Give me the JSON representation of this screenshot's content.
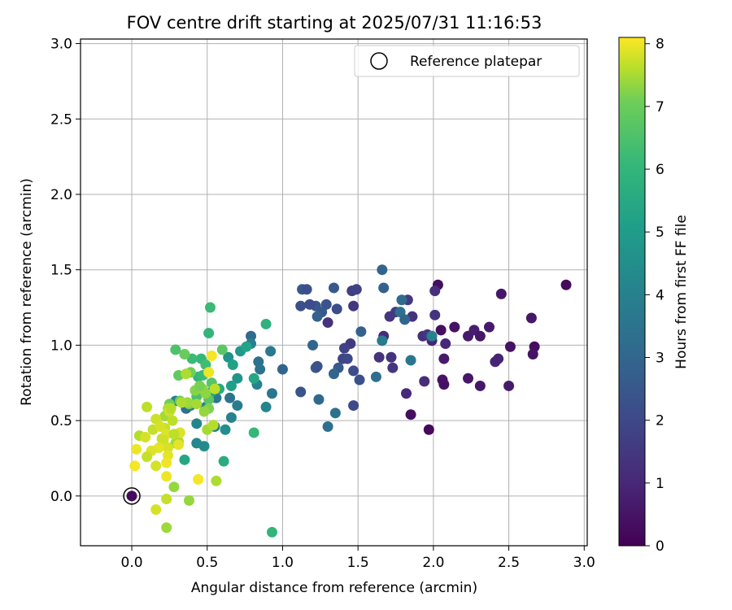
{
  "chart_data": {
    "type": "scatter",
    "title": "FOV centre drift starting at 2025/07/31 11:16:53",
    "xlabel": "Angular distance from reference (arcmin)",
    "ylabel": "Rotation from reference (arcmin)",
    "xlim": [
      -0.34,
      3.02
    ],
    "ylim": [
      -0.33,
      3.03
    ],
    "xticks": [
      0.0,
      0.5,
      1.0,
      1.5,
      2.0,
      2.5,
      3.0
    ],
    "xtick_labels": [
      "0.0",
      "0.5",
      "1.0",
      "1.5",
      "2.0",
      "2.5",
      "3.0"
    ],
    "yticks": [
      0.0,
      0.5,
      1.0,
      1.5,
      2.0,
      2.5,
      3.0
    ],
    "ytick_labels": [
      "0.0",
      "0.5",
      "1.0",
      "1.5",
      "2.0",
      "2.5",
      "3.0"
    ],
    "grid": true,
    "legend": {
      "placement": "top-right",
      "entries": [
        {
          "label": "Reference platepar",
          "marker": "open-circle",
          "color": "#000000"
        }
      ]
    },
    "reference_point": {
      "x": 0.0,
      "y": 0.0
    },
    "colorbar": {
      "label": "Hours from first FF file",
      "range": [
        0,
        8.1
      ],
      "ticks": [
        0,
        1,
        2,
        3,
        4,
        5,
        6,
        7,
        8
      ],
      "tick_labels": [
        "0",
        "1",
        "2",
        "3",
        "4",
        "5",
        "6",
        "7",
        "8"
      ],
      "colormap": "viridis"
    },
    "points": [
      {
        "x": 0.0,
        "y": 0.0,
        "t": 0.2
      },
      {
        "x": 2.88,
        "y": 1.4,
        "t": 0.2
      },
      {
        "x": 2.03,
        "y": 1.4,
        "t": 0.3
      },
      {
        "x": 2.45,
        "y": 1.34,
        "t": 0.5
      },
      {
        "x": 2.65,
        "y": 1.18,
        "t": 0.5
      },
      {
        "x": 2.37,
        "y": 1.12,
        "t": 0.6
      },
      {
        "x": 2.27,
        "y": 1.1,
        "t": 0.7
      },
      {
        "x": 2.14,
        "y": 1.12,
        "t": 0.4
      },
      {
        "x": 2.05,
        "y": 1.1,
        "t": 0.3
      },
      {
        "x": 2.23,
        "y": 1.06,
        "t": 0.6
      },
      {
        "x": 2.31,
        "y": 1.06,
        "t": 0.5
      },
      {
        "x": 2.51,
        "y": 0.99,
        "t": 0.4
      },
      {
        "x": 2.67,
        "y": 0.99,
        "t": 0.3
      },
      {
        "x": 2.66,
        "y": 0.94,
        "t": 0.4
      },
      {
        "x": 2.43,
        "y": 0.91,
        "t": 0.8
      },
      {
        "x": 2.41,
        "y": 0.89,
        "t": 0.8
      },
      {
        "x": 2.08,
        "y": 1.01,
        "t": 0.9
      },
      {
        "x": 1.99,
        "y": 1.03,
        "t": 0.8
      },
      {
        "x": 2.07,
        "y": 0.91,
        "t": 0.6
      },
      {
        "x": 2.23,
        "y": 0.78,
        "t": 0.5
      },
      {
        "x": 2.06,
        "y": 0.77,
        "t": 0.4
      },
      {
        "x": 2.07,
        "y": 0.74,
        "t": 0.4
      },
      {
        "x": 2.31,
        "y": 0.73,
        "t": 0.5
      },
      {
        "x": 2.5,
        "y": 0.73,
        "t": 0.6
      },
      {
        "x": 1.85,
        "y": 0.54,
        "t": 0.3
      },
      {
        "x": 1.97,
        "y": 0.44,
        "t": 0.2
      },
      {
        "x": 1.82,
        "y": 0.68,
        "t": 0.9
      },
      {
        "x": 1.94,
        "y": 0.76,
        "t": 1.0
      },
      {
        "x": 2.01,
        "y": 1.2,
        "t": 1.2
      },
      {
        "x": 2.01,
        "y": 1.36,
        "t": 1.1
      },
      {
        "x": 1.93,
        "y": 1.06,
        "t": 1.1
      },
      {
        "x": 1.96,
        "y": 1.07,
        "t": 1.3
      },
      {
        "x": 1.83,
        "y": 1.3,
        "t": 1.4
      },
      {
        "x": 1.71,
        "y": 1.19,
        "t": 1.3
      },
      {
        "x": 1.75,
        "y": 1.22,
        "t": 1.4
      },
      {
        "x": 1.86,
        "y": 1.19,
        "t": 1.2
      },
      {
        "x": 1.72,
        "y": 0.92,
        "t": 1.2
      },
      {
        "x": 1.64,
        "y": 0.92,
        "t": 1.2
      },
      {
        "x": 1.73,
        "y": 0.85,
        "t": 1.3
      },
      {
        "x": 1.67,
        "y": 1.06,
        "t": 1.0
      },
      {
        "x": 1.46,
        "y": 1.36,
        "t": 1.5
      },
      {
        "x": 1.49,
        "y": 1.37,
        "t": 1.6
      },
      {
        "x": 1.47,
        "y": 1.26,
        "t": 1.3
      },
      {
        "x": 1.45,
        "y": 1.01,
        "t": 1.4
      },
      {
        "x": 1.41,
        "y": 0.98,
        "t": 1.6
      },
      {
        "x": 1.4,
        "y": 0.91,
        "t": 1.7
      },
      {
        "x": 1.43,
        "y": 0.91,
        "t": 1.8
      },
      {
        "x": 1.47,
        "y": 0.83,
        "t": 1.9
      },
      {
        "x": 1.51,
        "y": 0.77,
        "t": 2.0
      },
      {
        "x": 1.47,
        "y": 0.6,
        "t": 1.8
      },
      {
        "x": 1.3,
        "y": 1.15,
        "t": 1.2
      },
      {
        "x": 1.36,
        "y": 1.24,
        "t": 1.9
      },
      {
        "x": 1.29,
        "y": 1.27,
        "t": 2.1
      },
      {
        "x": 1.26,
        "y": 1.22,
        "t": 2.3
      },
      {
        "x": 1.22,
        "y": 1.26,
        "t": 2.2
      },
      {
        "x": 1.13,
        "y": 1.37,
        "t": 2.2
      },
      {
        "x": 1.16,
        "y": 1.37,
        "t": 2.0
      },
      {
        "x": 1.23,
        "y": 1.19,
        "t": 2.5
      },
      {
        "x": 1.18,
        "y": 1.27,
        "t": 1.9
      },
      {
        "x": 1.12,
        "y": 1.26,
        "t": 2.0
      },
      {
        "x": 1.34,
        "y": 1.38,
        "t": 2.3
      },
      {
        "x": 1.66,
        "y": 1.5,
        "t": 2.6
      },
      {
        "x": 1.67,
        "y": 1.38,
        "t": 2.5
      },
      {
        "x": 1.79,
        "y": 1.3,
        "t": 2.8
      },
      {
        "x": 1.78,
        "y": 1.22,
        "t": 2.9
      },
      {
        "x": 1.81,
        "y": 1.17,
        "t": 2.6
      },
      {
        "x": 1.52,
        "y": 1.09,
        "t": 2.5
      },
      {
        "x": 1.37,
        "y": 0.85,
        "t": 2.3
      },
      {
        "x": 1.34,
        "y": 0.81,
        "t": 2.6
      },
      {
        "x": 1.22,
        "y": 0.85,
        "t": 2.4
      },
      {
        "x": 1.23,
        "y": 0.86,
        "t": 2.1
      },
      {
        "x": 1.2,
        "y": 1.0,
        "t": 2.6
      },
      {
        "x": 1.12,
        "y": 0.69,
        "t": 2.1
      },
      {
        "x": 1.24,
        "y": 0.64,
        "t": 2.7
      },
      {
        "x": 1.3,
        "y": 0.46,
        "t": 2.9
      },
      {
        "x": 1.35,
        "y": 0.55,
        "t": 3.0
      },
      {
        "x": 1.62,
        "y": 0.79,
        "t": 2.9
      },
      {
        "x": 1.85,
        "y": 0.9,
        "t": 3.2
      },
      {
        "x": 1.66,
        "y": 1.03,
        "t": 3.4
      },
      {
        "x": 1.99,
        "y": 1.06,
        "t": 3.6
      },
      {
        "x": 1.0,
        "y": 0.84,
        "t": 2.6
      },
      {
        "x": 0.92,
        "y": 0.96,
        "t": 3.3
      },
      {
        "x": 0.93,
        "y": 0.68,
        "t": 3.2
      },
      {
        "x": 0.84,
        "y": 0.89,
        "t": 3.0
      },
      {
        "x": 0.85,
        "y": 0.84,
        "t": 3.1
      },
      {
        "x": 0.79,
        "y": 1.06,
        "t": 2.8
      },
      {
        "x": 0.79,
        "y": 1.01,
        "t": 3.5
      },
      {
        "x": 0.83,
        "y": 0.74,
        "t": 3.6
      },
      {
        "x": 0.89,
        "y": 0.59,
        "t": 3.7
      },
      {
        "x": 0.7,
        "y": 0.6,
        "t": 3.4
      },
      {
        "x": 0.65,
        "y": 0.65,
        "t": 3.1
      },
      {
        "x": 0.66,
        "y": 0.52,
        "t": 3.6
      },
      {
        "x": 0.56,
        "y": 0.65,
        "t": 3.3
      },
      {
        "x": 0.62,
        "y": 0.44,
        "t": 4.0
      },
      {
        "x": 0.55,
        "y": 0.46,
        "t": 3.5
      },
      {
        "x": 0.49,
        "y": 0.59,
        "t": 3.6
      },
      {
        "x": 0.43,
        "y": 0.48,
        "t": 3.7
      },
      {
        "x": 0.43,
        "y": 0.35,
        "t": 3.8
      },
      {
        "x": 0.48,
        "y": 0.33,
        "t": 3.9
      },
      {
        "x": 0.39,
        "y": 0.6,
        "t": 3.3
      },
      {
        "x": 0.36,
        "y": 0.58,
        "t": 3.0
      },
      {
        "x": 0.29,
        "y": 0.63,
        "t": 3.5
      },
      {
        "x": 0.7,
        "y": 0.78,
        "t": 4.2
      },
      {
        "x": 0.72,
        "y": 0.96,
        "t": 4.3
      },
      {
        "x": 0.64,
        "y": 0.92,
        "t": 4.1
      },
      {
        "x": 0.67,
        "y": 0.87,
        "t": 4.6
      },
      {
        "x": 0.66,
        "y": 0.73,
        "t": 4.5
      },
      {
        "x": 0.81,
        "y": 0.78,
        "t": 4.8
      },
      {
        "x": 0.76,
        "y": 0.99,
        "t": 4.7
      },
      {
        "x": 0.58,
        "y": 0.71,
        "t": 4.9
      },
      {
        "x": 0.53,
        "y": 0.69,
        "t": 4.6
      },
      {
        "x": 0.61,
        "y": 0.23,
        "t": 5.0
      },
      {
        "x": 0.35,
        "y": 0.24,
        "t": 4.8
      },
      {
        "x": 0.93,
        "y": -0.24,
        "t": 5.3
      },
      {
        "x": 0.81,
        "y": 0.42,
        "t": 5.4
      },
      {
        "x": 0.89,
        "y": 1.14,
        "t": 5.2
      },
      {
        "x": 0.52,
        "y": 1.25,
        "t": 5.5
      },
      {
        "x": 0.51,
        "y": 1.08,
        "t": 5.3
      },
      {
        "x": 0.46,
        "y": 0.91,
        "t": 5.4
      },
      {
        "x": 0.49,
        "y": 0.87,
        "t": 5.6
      },
      {
        "x": 0.4,
        "y": 0.91,
        "t": 5.5
      },
      {
        "x": 0.44,
        "y": 0.79,
        "t": 5.3
      },
      {
        "x": 0.47,
        "y": 0.8,
        "t": 5.5
      },
      {
        "x": 0.43,
        "y": 0.66,
        "t": 5.7
      },
      {
        "x": 0.53,
        "y": 0.75,
        "t": 5.9
      },
      {
        "x": 0.6,
        "y": 0.97,
        "t": 6.0
      },
      {
        "x": 0.35,
        "y": 0.94,
        "t": 6.2
      },
      {
        "x": 0.31,
        "y": 0.8,
        "t": 6.1
      },
      {
        "x": 0.29,
        "y": 0.97,
        "t": 5.8
      },
      {
        "x": 0.39,
        "y": 0.82,
        "t": 6.3
      },
      {
        "x": 0.38,
        "y": 0.61,
        "t": 6.4
      },
      {
        "x": 0.32,
        "y": 0.63,
        "t": 6.2
      },
      {
        "x": 0.25,
        "y": 0.61,
        "t": 6.3
      },
      {
        "x": 0.51,
        "y": 0.64,
        "t": 6.0
      },
      {
        "x": 0.51,
        "y": 0.58,
        "t": 6.5
      },
      {
        "x": 0.42,
        "y": 0.7,
        "t": 6.6
      },
      {
        "x": 0.47,
        "y": 0.71,
        "t": 6.8
      },
      {
        "x": 0.49,
        "y": 0.68,
        "t": 6.7
      },
      {
        "x": 0.45,
        "y": 0.73,
        "t": 6.4
      },
      {
        "x": 0.48,
        "y": 0.56,
        "t": 6.8
      },
      {
        "x": 0.37,
        "y": 0.62,
        "t": 6.9
      },
      {
        "x": 0.43,
        "y": 0.61,
        "t": 7.0
      },
      {
        "x": 0.33,
        "y": 0.62,
        "t": 7.1
      },
      {
        "x": 0.24,
        "y": 0.58,
        "t": 7.2
      },
      {
        "x": 0.22,
        "y": 0.53,
        "t": 7.0
      },
      {
        "x": 0.27,
        "y": 0.5,
        "t": 7.3
      },
      {
        "x": 0.22,
        "y": 0.45,
        "t": 7.4
      },
      {
        "x": 0.29,
        "y": 0.35,
        "t": 6.9
      },
      {
        "x": 0.31,
        "y": 0.36,
        "t": 7.0
      },
      {
        "x": 0.28,
        "y": 0.06,
        "t": 6.8
      },
      {
        "x": 0.38,
        "y": -0.03,
        "t": 6.8
      },
      {
        "x": 0.23,
        "y": -0.21,
        "t": 6.9
      },
      {
        "x": 0.56,
        "y": 0.1,
        "t": 7.1
      },
      {
        "x": 0.5,
        "y": 0.44,
        "t": 7.0
      },
      {
        "x": 0.54,
        "y": 0.47,
        "t": 7.2
      },
      {
        "x": 0.55,
        "y": 0.71,
        "t": 7.3
      },
      {
        "x": 0.36,
        "y": 0.81,
        "t": 7.1
      },
      {
        "x": 0.05,
        "y": 0.4,
        "t": 7.2
      },
      {
        "x": 0.1,
        "y": 0.59,
        "t": 7.3
      },
      {
        "x": 0.14,
        "y": 0.44,
        "t": 7.4
      },
      {
        "x": 0.16,
        "y": 0.51,
        "t": 7.5
      },
      {
        "x": 0.19,
        "y": 0.46,
        "t": 7.6
      },
      {
        "x": 0.2,
        "y": 0.38,
        "t": 7.4
      },
      {
        "x": 0.23,
        "y": 0.41,
        "t": 7.7
      },
      {
        "x": 0.21,
        "y": 0.37,
        "t": 7.5
      },
      {
        "x": 0.24,
        "y": 0.32,
        "t": 7.6
      },
      {
        "x": 0.18,
        "y": 0.32,
        "t": 7.8
      },
      {
        "x": 0.13,
        "y": 0.3,
        "t": 7.7
      },
      {
        "x": 0.1,
        "y": 0.26,
        "t": 7.4
      },
      {
        "x": 0.16,
        "y": 0.2,
        "t": 7.6
      },
      {
        "x": 0.24,
        "y": 0.27,
        "t": 7.8
      },
      {
        "x": 0.23,
        "y": 0.22,
        "t": 7.9
      },
      {
        "x": 0.23,
        "y": 0.13,
        "t": 7.9
      },
      {
        "x": 0.16,
        "y": -0.09,
        "t": 7.6
      },
      {
        "x": 0.23,
        "y": -0.02,
        "t": 7.4
      },
      {
        "x": 0.31,
        "y": 0.34,
        "t": 7.8
      },
      {
        "x": 0.32,
        "y": 0.42,
        "t": 7.7
      },
      {
        "x": 0.09,
        "y": 0.39,
        "t": 7.6
      },
      {
        "x": 0.03,
        "y": 0.31,
        "t": 7.9
      },
      {
        "x": 0.02,
        "y": 0.2,
        "t": 8.0
      },
      {
        "x": 0.44,
        "y": 0.11,
        "t": 8.0
      },
      {
        "x": 0.25,
        "y": 0.56,
        "t": 7.5
      },
      {
        "x": 0.53,
        "y": 0.93,
        "t": 8.0
      },
      {
        "x": 0.51,
        "y": 0.82,
        "t": 7.9
      },
      {
        "x": 0.26,
        "y": 0.58,
        "t": 7.2
      },
      {
        "x": 0.28,
        "y": 0.41,
        "t": 7.3
      }
    ]
  }
}
